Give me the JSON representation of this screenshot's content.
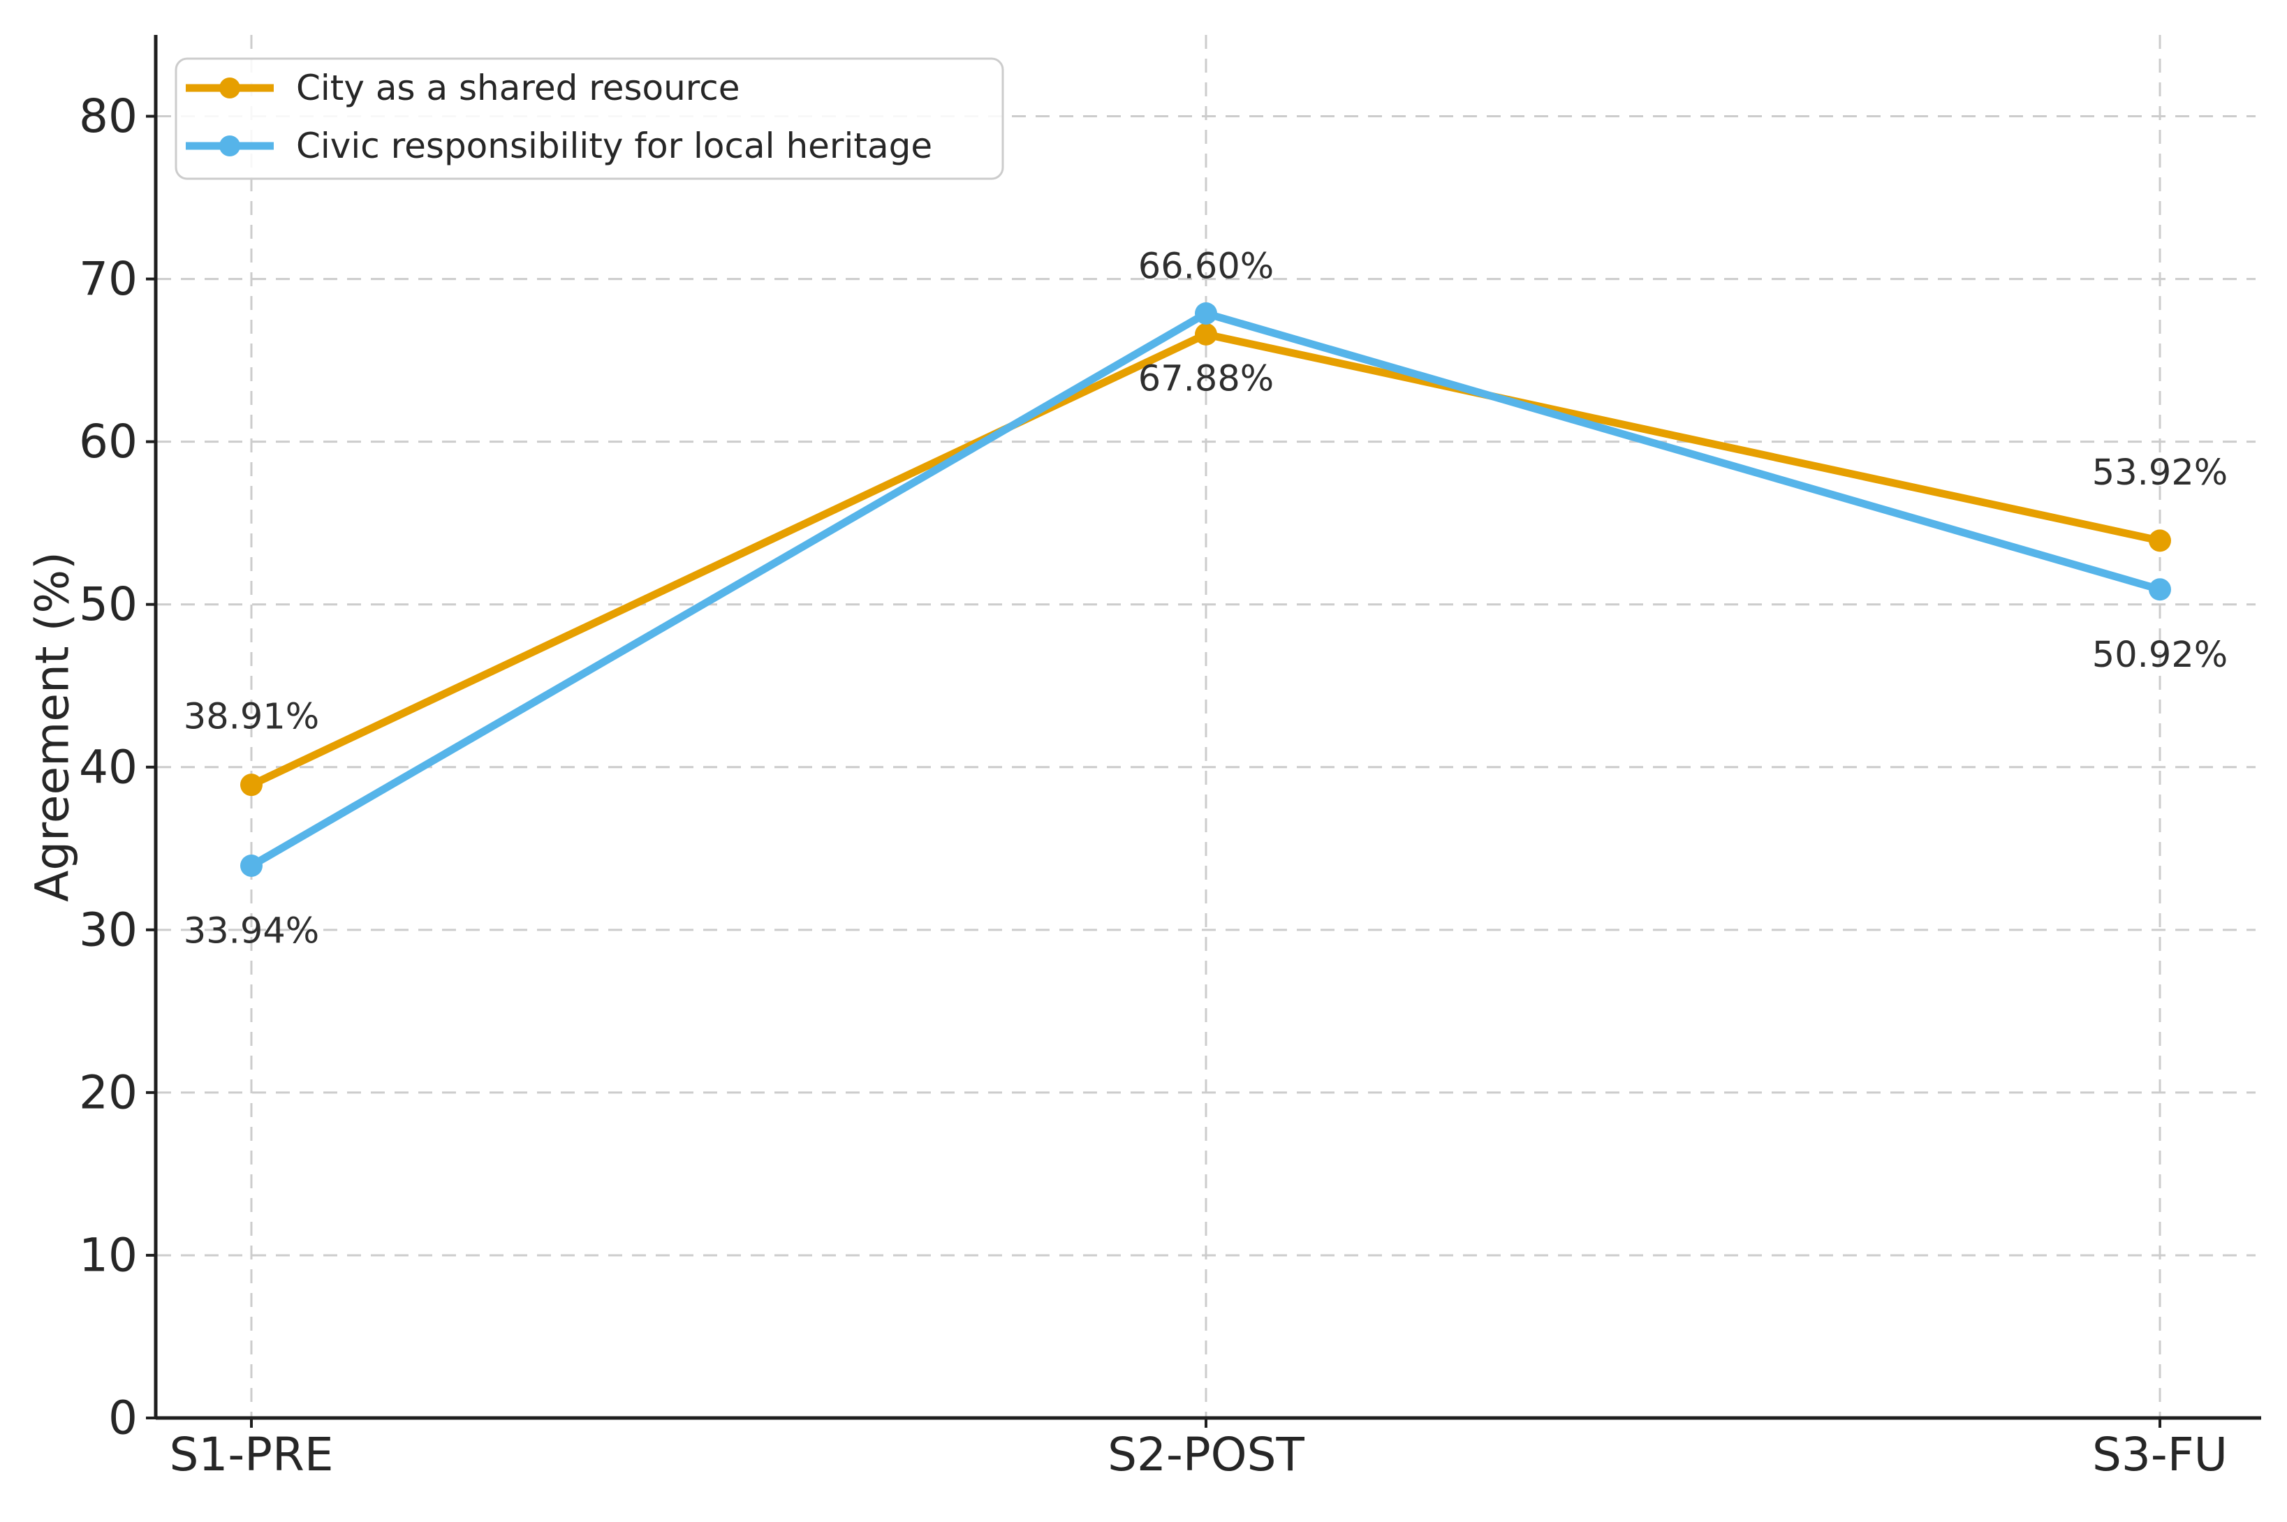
{
  "chart_data": {
    "type": "line",
    "title": "",
    "xlabel": "",
    "ylabel": "Agreement (%)",
    "categories": [
      "S1-PRE",
      "S2-POST",
      "S3-FU"
    ],
    "series": [
      {
        "name": "City as a shared resource",
        "color": "#E69F00",
        "values": [
          38.91,
          66.6,
          53.92
        ],
        "labels": [
          "38.91%",
          "66.60%",
          "53.92%"
        ],
        "label_position": "above"
      },
      {
        "name": "Civic responsibility for local heritage",
        "color": "#56B4E9",
        "values": [
          33.94,
          67.88,
          50.92
        ],
        "labels": [
          "33.94%",
          "67.88%",
          "50.92%"
        ],
        "label_position": "below"
      }
    ],
    "ylim": [
      0,
      85
    ],
    "yticks": [
      0,
      10,
      20,
      30,
      40,
      50,
      60,
      70,
      80
    ],
    "grid": true,
    "grid_style": "dashed",
    "legend_position": "upper left"
  },
  "style": {
    "background": "#ffffff",
    "grid_color": "#cccccc",
    "axis_color": "#1f1f1f",
    "tick_text_color": "#262626",
    "data_label_color": "#2e2e2e",
    "legend_border_color": "#cccccc",
    "legend_fill": "rgba(255,255,255,0.85)"
  }
}
